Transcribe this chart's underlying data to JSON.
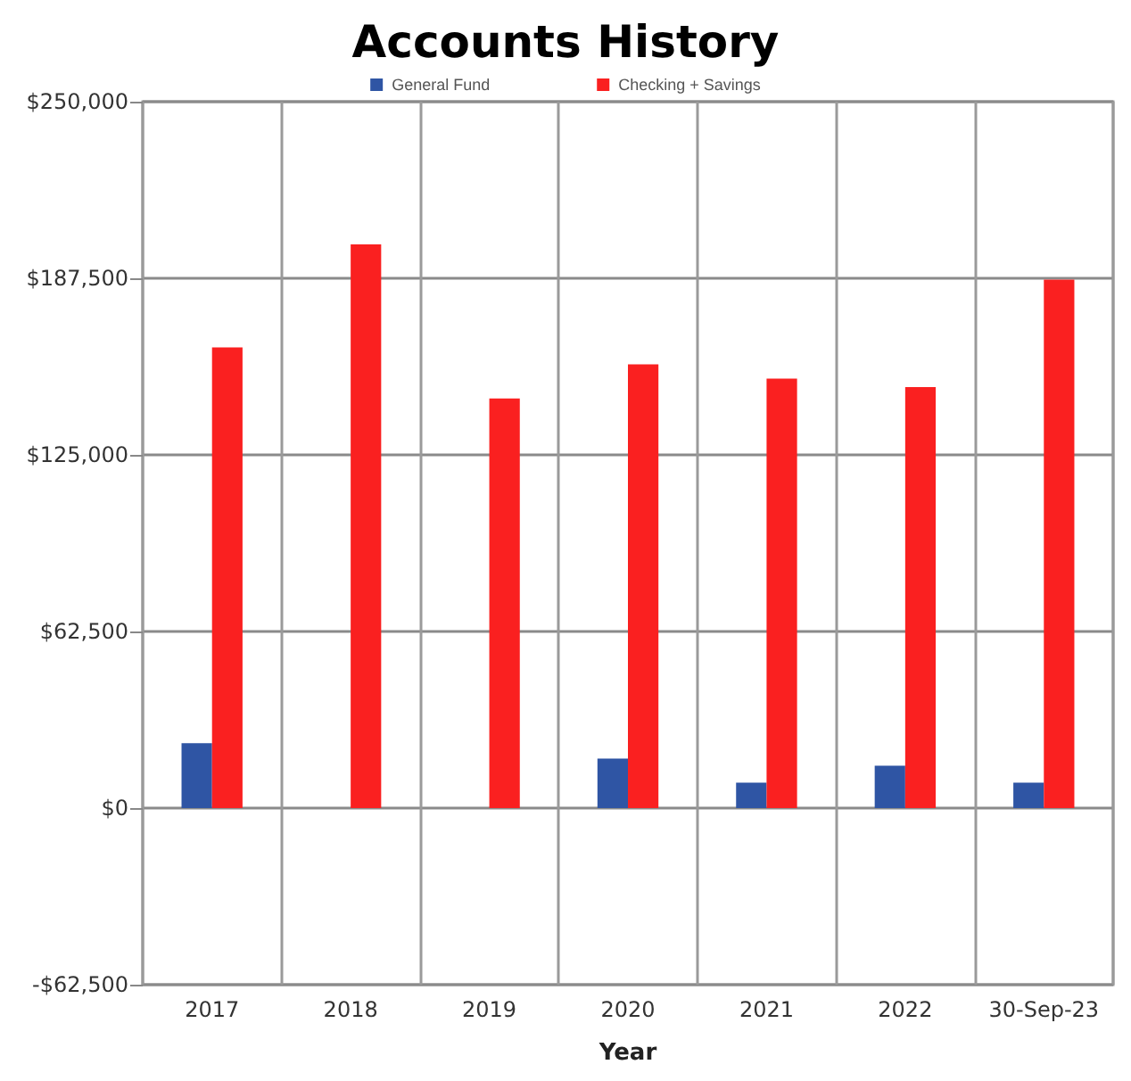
{
  "chart_data": {
    "type": "bar",
    "title": "Accounts History",
    "xlabel": "Year",
    "categories": [
      "2017",
      "2018",
      "2019",
      "2020",
      "2021",
      "2022",
      "30-Sep-23"
    ],
    "series": [
      {
        "name": "General Fund",
        "color": "#2f55a4",
        "values": [
          23000,
          null,
          null,
          17500,
          9000,
          15000,
          9000
        ]
      },
      {
        "name": "Checking + Savings",
        "color": "#fa2020",
        "values": [
          163000,
          199500,
          145000,
          157000,
          152000,
          149000,
          187000
        ]
      }
    ],
    "ylim": [
      -62500,
      250000
    ],
    "yticks": [
      {
        "value": -62500,
        "label": "-$62,500"
      },
      {
        "value": 0,
        "label": "$0"
      },
      {
        "value": 62500,
        "label": "$62,500"
      },
      {
        "value": 125000,
        "label": "$125,000"
      },
      {
        "value": 187500,
        "label": "$187,500"
      },
      {
        "value": 250000,
        "label": "$250,000"
      }
    ],
    "grid": true,
    "legend": "top"
  }
}
